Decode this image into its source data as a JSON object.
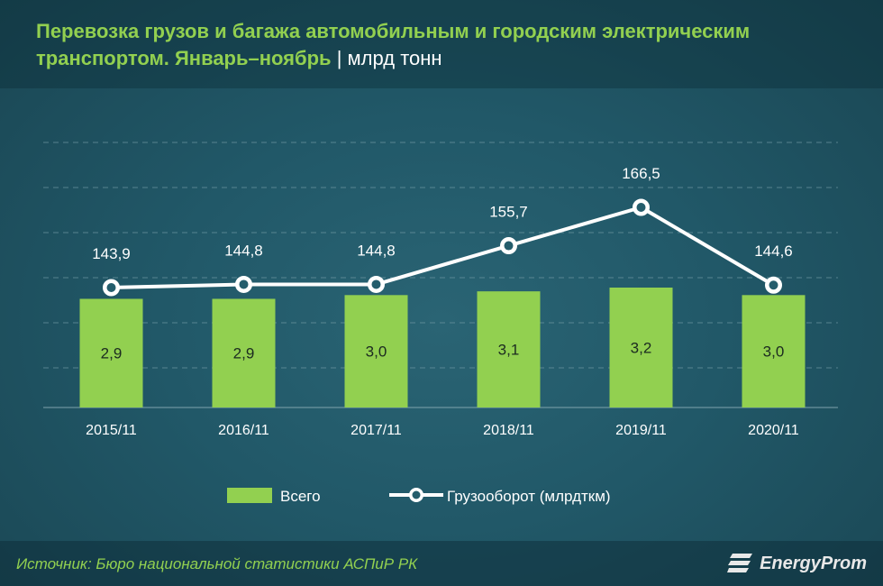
{
  "title": {
    "main": "Перевозка грузов и багажа автомобильным и городским электрическим транспортом. Январь–ноябрь",
    "separator": "|",
    "unit": "млрд тонн"
  },
  "chart_data": {
    "type": "bar",
    "categories": [
      "2015/11",
      "2016/11",
      "2017/11",
      "2018/11",
      "2019/11",
      "2020/11"
    ],
    "series": [
      {
        "name": "Всего",
        "type": "bar",
        "values": [
          2.9,
          2.9,
          3.0,
          3.1,
          3.2,
          3.0
        ],
        "labels": [
          "2,9",
          "2,9",
          "3,0",
          "3,1",
          "3,2",
          "3,0"
        ],
        "color": "#92d050"
      },
      {
        "name": "Грузооборот (млрдткм)",
        "type": "line",
        "values": [
          143.9,
          144.8,
          144.8,
          155.7,
          166.5,
          144.6
        ],
        "labels": [
          "143,9",
          "144,8",
          "144,8",
          "155,7",
          "166,5",
          "144,6"
        ],
        "color": "#ffffff"
      }
    ],
    "grid": true,
    "legend_placement": "bottom"
  },
  "footer": {
    "source": "Источник: Бюро национальной  статистики АСПиР РК",
    "brand": "EnergyProm"
  }
}
